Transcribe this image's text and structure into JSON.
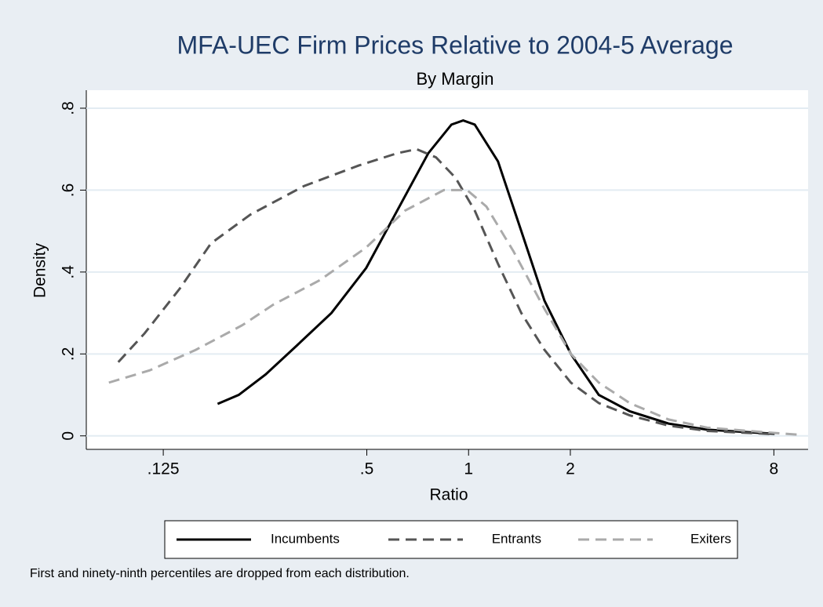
{
  "chart_data": {
    "type": "line",
    "title": "MFA-UEC Firm Prices Relative to 2004-5 Average",
    "subtitle": "By Margin",
    "x_label": "Ratio",
    "y_label": "Density",
    "note": "First and ninety-ninth percentiles are dropped from each distribution.",
    "xscale": "log",
    "xlim": [
      0.074,
      10.1
    ],
    "xticks": [
      {
        "value": 0.125,
        "label": ".125"
      },
      {
        "value": 0.5,
        "label": ".5"
      },
      1,
      2,
      8
    ],
    "ylim": [
      -0.033,
      0.844
    ],
    "yticks": [
      0,
      {
        "value": 0.2,
        "label": ".2"
      },
      {
        "value": 0.4,
        "label": ".4"
      },
      {
        "value": 0.6,
        "label": ".6"
      },
      {
        "value": 0.8,
        "label": ".8"
      }
    ],
    "grid": true,
    "legend": "bottom",
    "series": [
      {
        "name": "Incumbents",
        "color": "#000000",
        "dash": "solid",
        "x": [
          0.181,
          0.209,
          0.251,
          0.31,
          0.393,
          0.498,
          0.615,
          0.76,
          0.89,
          0.964,
          1.043,
          1.222,
          1.432,
          1.677,
          2.007,
          2.428,
          2.998,
          3.904,
          5.084,
          8.04
        ],
        "values": [
          0.078,
          0.1,
          0.15,
          0.22,
          0.3,
          0.41,
          0.55,
          0.69,
          0.76,
          0.77,
          0.76,
          0.67,
          0.5,
          0.33,
          0.2,
          0.1,
          0.06,
          0.03,
          0.015,
          0.005
        ]
      },
      {
        "name": "Entrants",
        "color": "#555555",
        "dash": "dashed",
        "x": [
          0.092,
          0.11,
          0.14,
          0.173,
          0.226,
          0.326,
          0.473,
          0.615,
          0.702,
          0.801,
          0.915,
          1.043,
          1.222,
          1.432,
          1.677,
          2.007,
          2.428,
          2.998,
          3.904,
          5.084,
          8.04
        ],
        "values": [
          0.18,
          0.25,
          0.36,
          0.47,
          0.54,
          0.61,
          0.66,
          0.69,
          0.7,
          0.68,
          0.63,
          0.55,
          0.42,
          0.3,
          0.21,
          0.13,
          0.08,
          0.05,
          0.025,
          0.012,
          0.004
        ]
      },
      {
        "name": "Exiters",
        "color": "#aaaaaa",
        "dash": "dashed",
        "x": [
          0.0863,
          0.114,
          0.156,
          0.214,
          0.264,
          0.363,
          0.498,
          0.649,
          0.845,
          0.99,
          1.129,
          1.359,
          1.677,
          2.007,
          2.428,
          2.998,
          3.904,
          5.084,
          8.04,
          9.43
        ],
        "values": [
          0.13,
          0.16,
          0.21,
          0.27,
          0.32,
          0.38,
          0.46,
          0.55,
          0.6,
          0.6,
          0.56,
          0.45,
          0.31,
          0.2,
          0.13,
          0.08,
          0.04,
          0.02,
          0.007,
          0.003
        ]
      }
    ]
  }
}
